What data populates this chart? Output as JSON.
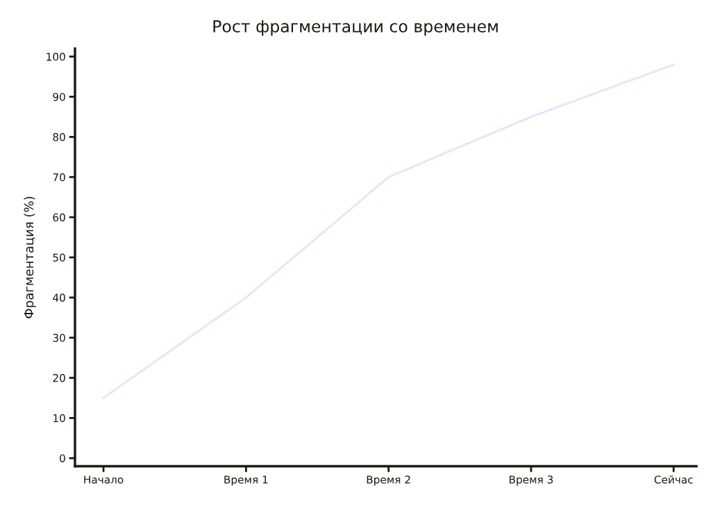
{
  "chart_data": {
    "type": "line",
    "title": "Рост фрагментации со временем",
    "ylabel": "Фрагментация (%)",
    "categories": [
      "Начало",
      "Время 1",
      "Время 2",
      "Время 3",
      "Сейчас"
    ],
    "series": [
      {
        "color": "#e6e6fa",
        "values": [
          15,
          40,
          70,
          85,
          98
        ]
      }
    ],
    "ylim": [
      -2,
      102
    ],
    "yticks": [
      0,
      10,
      20,
      30,
      40,
      50,
      60,
      70,
      80,
      90,
      100
    ],
    "line_style": "solid"
  }
}
